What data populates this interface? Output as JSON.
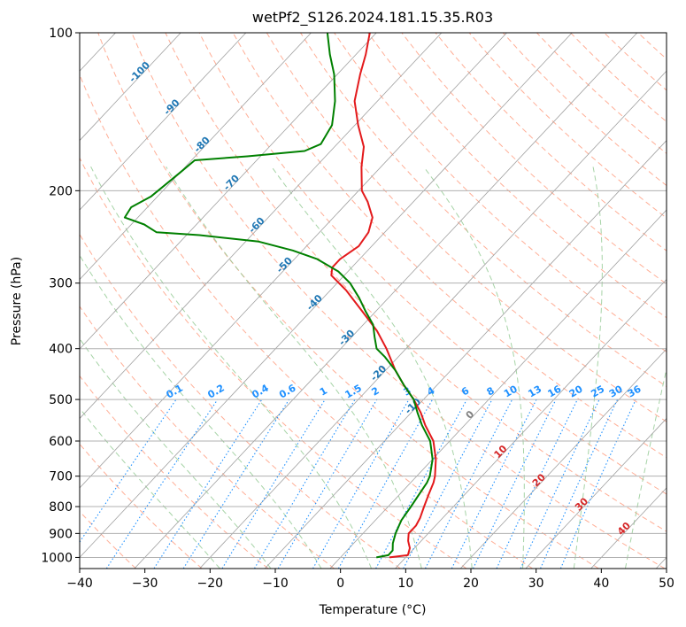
{
  "chart_data": {
    "type": "line",
    "subtype": "skew-t log-p",
    "title": "wetPf2_S126.2024.181.15.35.R03",
    "xlabel": "Temperature (°C)",
    "ylabel": "Pressure (hPa)",
    "xlim": [
      -40,
      50
    ],
    "ylim": [
      1050,
      100
    ],
    "y_scale": "log",
    "x_ticks": [
      -40,
      -30,
      -20,
      -10,
      0,
      10,
      20,
      30,
      40,
      50
    ],
    "y_ticks": [
      1000,
      900,
      800,
      700,
      600,
      500,
      400,
      300,
      200,
      100
    ],
    "grid": "horizontal isobars",
    "skew_deg_per_decade": 75.5,
    "isotherm_labels": [
      -100,
      -90,
      -80,
      -70,
      -60,
      -50,
      -40,
      -30,
      -20,
      -10,
      0,
      10,
      20,
      30,
      40
    ],
    "mixing_ratio_labels": [
      "0.1",
      "0.2",
      "0.4",
      "0.6",
      "1",
      "1.5",
      "2",
      "3",
      "4",
      "6",
      "8",
      "10",
      "13",
      "16",
      "20",
      "25",
      "30",
      "36"
    ],
    "colors": {
      "temperature": "#e31a1c",
      "dewpoint": "#008000",
      "isotherm_label_cold": "#1f77b4",
      "isotherm_label_zero": "#808080",
      "isotherm_label_warm": "#d62728",
      "mixing_ratio": "#1e90ff",
      "dry_adiabat": "#ff8c69",
      "moist_adiabat": "#90c890",
      "skewed_isotherm": "#a0a0a0"
    },
    "series": [
      {
        "id": "temperature",
        "points": [
          {
            "p": 1000,
            "t": 7.5
          },
          {
            "p": 990,
            "t": 10.0
          },
          {
            "p": 960,
            "t": 9.3
          },
          {
            "p": 930,
            "t": 8.0
          },
          {
            "p": 900,
            "t": 7.0
          },
          {
            "p": 870,
            "t": 7.0
          },
          {
            "p": 840,
            "t": 6.5
          },
          {
            "p": 800,
            "t": 5.5
          },
          {
            "p": 760,
            "t": 4.5
          },
          {
            "p": 720,
            "t": 3.5
          },
          {
            "p": 700,
            "t": 2.8
          },
          {
            "p": 650,
            "t": 0.5
          },
          {
            "p": 600,
            "t": -2.5
          },
          {
            "p": 560,
            "t": -6.0
          },
          {
            "p": 530,
            "t": -8.5
          },
          {
            "p": 500,
            "t": -11.5
          },
          {
            "p": 470,
            "t": -15.0
          },
          {
            "p": 440,
            "t": -18.5
          },
          {
            "p": 400,
            "t": -23.0
          },
          {
            "p": 370,
            "t": -27.0
          },
          {
            "p": 340,
            "t": -32.0
          },
          {
            "p": 310,
            "t": -37.5
          },
          {
            "p": 290,
            "t": -42.0
          },
          {
            "p": 280,
            "t": -43.0
          },
          {
            "p": 270,
            "t": -43.0
          },
          {
            "p": 255,
            "t": -42.0
          },
          {
            "p": 240,
            "t": -42.5
          },
          {
            "p": 225,
            "t": -44.0
          },
          {
            "p": 210,
            "t": -47.0
          },
          {
            "p": 200,
            "t": -49.5
          },
          {
            "p": 180,
            "t": -53.0
          },
          {
            "p": 165,
            "t": -55.5
          },
          {
            "p": 150,
            "t": -59.5
          },
          {
            "p": 135,
            "t": -63.5
          },
          {
            "p": 120,
            "t": -66.5
          },
          {
            "p": 110,
            "t": -68.5
          },
          {
            "p": 100,
            "t": -71.0
          }
        ]
      },
      {
        "id": "dewpoint",
        "points": [
          {
            "p": 1000,
            "t": 5.5
          },
          {
            "p": 990,
            "t": 7.0
          },
          {
            "p": 970,
            "t": 7.0
          },
          {
            "p": 940,
            "t": 6.0
          },
          {
            "p": 900,
            "t": 5.0
          },
          {
            "p": 850,
            "t": 4.0
          },
          {
            "p": 800,
            "t": 3.5
          },
          {
            "p": 760,
            "t": 3.0
          },
          {
            "p": 720,
            "t": 2.5
          },
          {
            "p": 700,
            "t": 2.0
          },
          {
            "p": 650,
            "t": 0.0
          },
          {
            "p": 600,
            "t": -3.0
          },
          {
            "p": 560,
            "t": -6.5
          },
          {
            "p": 530,
            "t": -9.0
          },
          {
            "p": 500,
            "t": -11.5
          },
          {
            "p": 470,
            "t": -15.0
          },
          {
            "p": 440,
            "t": -18.5
          },
          {
            "p": 415,
            "t": -22.0
          },
          {
            "p": 400,
            "t": -24.5
          },
          {
            "p": 380,
            "t": -26.5
          },
          {
            "p": 360,
            "t": -28.5
          },
          {
            "p": 340,
            "t": -31.5
          },
          {
            "p": 320,
            "t": -34.5
          },
          {
            "p": 300,
            "t": -38.0
          },
          {
            "p": 285,
            "t": -41.5
          },
          {
            "p": 270,
            "t": -46.5
          },
          {
            "p": 260,
            "t": -51.5
          },
          {
            "p": 250,
            "t": -58.0
          },
          {
            "p": 243,
            "t": -68.0
          },
          {
            "p": 240,
            "t": -75.0
          },
          {
            "p": 232,
            "t": -78.0
          },
          {
            "p": 225,
            "t": -82.0
          },
          {
            "p": 215,
            "t": -82.5
          },
          {
            "p": 205,
            "t": -81.0
          },
          {
            "p": 195,
            "t": -80.5
          },
          {
            "p": 185,
            "t": -80.0
          },
          {
            "p": 175,
            "t": -79.5
          },
          {
            "p": 172,
            "t": -72.0
          },
          {
            "p": 168,
            "t": -64.0
          },
          {
            "p": 163,
            "t": -62.5
          },
          {
            "p": 150,
            "t": -63.5
          },
          {
            "p": 135,
            "t": -66.5
          },
          {
            "p": 120,
            "t": -70.5
          },
          {
            "p": 110,
            "t": -74.0
          },
          {
            "p": 100,
            "t": -77.5
          }
        ]
      }
    ]
  }
}
